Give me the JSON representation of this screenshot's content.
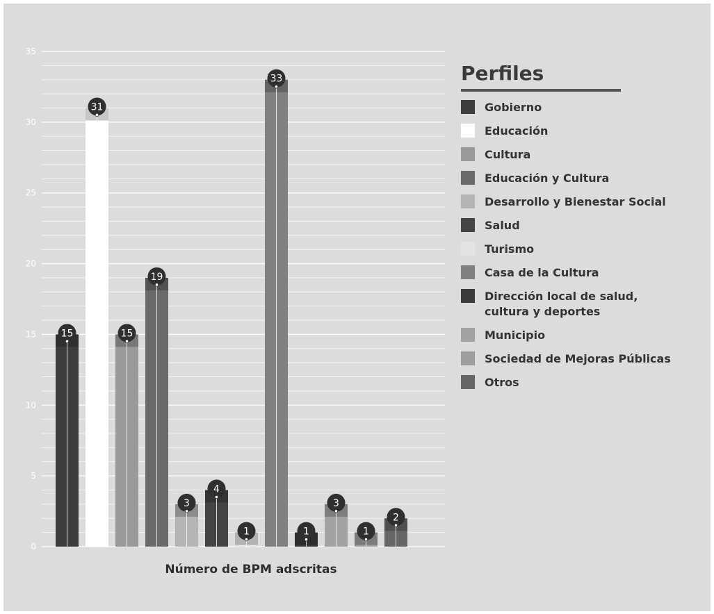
{
  "chart_data": {
    "type": "bar",
    "categories": [
      "Gobierno",
      "Educación",
      "Cultura",
      "Educación y Cultura",
      "Desarrollo y Bienestar Social",
      "Salud",
      "Turismo",
      "Casa de la Cultura",
      "Dirección local de salud, cultura y deportes",
      "Municipio",
      "Sociedad de Mejoras Públicas",
      "Otros"
    ],
    "values": [
      15,
      31,
      15,
      19,
      3,
      4,
      1,
      33,
      1,
      3,
      1,
      2
    ],
    "colors": [
      "#3d3d3d",
      "#ffffff",
      "#9a9a9a",
      "#6a6a6a",
      "#b4b4b4",
      "#444444",
      "#e4e4e4",
      "#808080",
      "#3a3a3a",
      "#a2a2a2",
      "#9e9e9e",
      "#666666"
    ],
    "xlabel": "Número de BPM adscritas",
    "ylabel": "",
    "ylim": [
      0,
      35
    ],
    "yticks": [
      0,
      5,
      10,
      15,
      20,
      25,
      30,
      35
    ],
    "grid": true,
    "legend_title": "Perfiles",
    "legend_position": "right"
  },
  "legend_lines": [
    [
      "Gobierno"
    ],
    [
      "Educación"
    ],
    [
      "Cultura"
    ],
    [
      "Educación y Cultura"
    ],
    [
      "Desarrollo y Bienestar Social"
    ],
    [
      "Salud"
    ],
    [
      "Turismo"
    ],
    [
      "Casa de la Cultura"
    ],
    [
      "Dirección local de salud,",
      "cultura y deportes"
    ],
    [
      "Municipio"
    ],
    [
      "Sociedad de Mejoras Públicas"
    ],
    [
      "Otros"
    ]
  ]
}
